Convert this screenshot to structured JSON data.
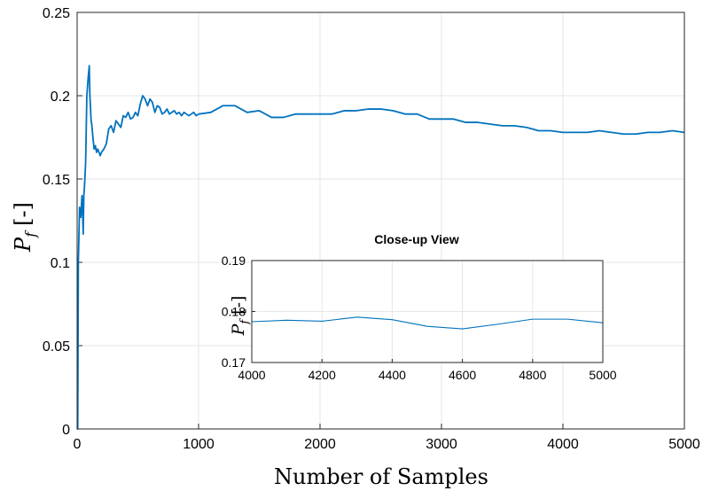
{
  "chart_data": [
    {
      "type": "line",
      "title": "",
      "xlabel": "Number of Samples",
      "ylabel": "P_f [-]",
      "ylabel_parts": {
        "symbol": "P",
        "subscript": "f",
        "unit": "[-]"
      },
      "xlim": [
        0,
        5000
      ],
      "ylim": [
        0,
        0.25
      ],
      "x_ticks": [
        "0",
        "1000",
        "2000",
        "3000",
        "4000",
        "5000"
      ],
      "y_ticks": [
        "0",
        "0.05",
        "0.1",
        "0.15",
        "0.2",
        "0.25"
      ],
      "grid": true,
      "color": "#0072BD",
      "series": [
        {
          "x": [
            1,
            5,
            10,
            20,
            30,
            40,
            45,
            50,
            55,
            60,
            65,
            70,
            75,
            80,
            90,
            100,
            105,
            110,
            115,
            120,
            130,
            140,
            150,
            160,
            170,
            180,
            190,
            200,
            220,
            240,
            260,
            280,
            300,
            320,
            340,
            360,
            380,
            400,
            420,
            440,
            460,
            480,
            500,
            520,
            540,
            560,
            580,
            600,
            620,
            640,
            660,
            680,
            700,
            720,
            740,
            760,
            780,
            800,
            820,
            840,
            860,
            880,
            900,
            920,
            940,
            960,
            980,
            1000,
            1100,
            1200,
            1300,
            1400,
            1500,
            1600,
            1700,
            1800,
            1900,
            2000,
            2100,
            2200,
            2300,
            2400,
            2500,
            2600,
            2700,
            2800,
            2900,
            3000,
            3100,
            3200,
            3300,
            3400,
            3500,
            3600,
            3700,
            3800,
            3900,
            4000,
            4100,
            4200,
            4300,
            4400,
            4500,
            4600,
            4700,
            4800,
            4900,
            5000
          ],
          "y": [
            0.0,
            0.0,
            0.1,
            0.133,
            0.127,
            0.14,
            0.13,
            0.117,
            0.14,
            0.145,
            0.152,
            0.16,
            0.18,
            0.2,
            0.21,
            0.218,
            0.2,
            0.193,
            0.185,
            0.183,
            0.175,
            0.168,
            0.17,
            0.166,
            0.168,
            0.166,
            0.164,
            0.166,
            0.168,
            0.171,
            0.18,
            0.182,
            0.178,
            0.185,
            0.183,
            0.181,
            0.188,
            0.187,
            0.19,
            0.186,
            0.187,
            0.19,
            0.188,
            0.195,
            0.2,
            0.198,
            0.194,
            0.198,
            0.196,
            0.19,
            0.194,
            0.193,
            0.189,
            0.19,
            0.192,
            0.189,
            0.19,
            0.191,
            0.189,
            0.19,
            0.188,
            0.19,
            0.189,
            0.188,
            0.189,
            0.19,
            0.188,
            0.189,
            0.19,
            0.194,
            0.194,
            0.19,
            0.191,
            0.187,
            0.187,
            0.189,
            0.189,
            0.189,
            0.189,
            0.191,
            0.191,
            0.192,
            0.192,
            0.191,
            0.189,
            0.189,
            0.186,
            0.186,
            0.186,
            0.184,
            0.184,
            0.183,
            0.182,
            0.182,
            0.181,
            0.179,
            0.179,
            0.178,
            0.178,
            0.178,
            0.179,
            0.178,
            0.177,
            0.177,
            0.178,
            0.178,
            0.179,
            0.178
          ]
        }
      ]
    },
    {
      "type": "line",
      "title": "Close-up View",
      "xlabel": "",
      "ylabel": "P_f [-]",
      "ylabel_parts": {
        "symbol": "P",
        "subscript": "f",
        "unit": "[-]"
      },
      "xlim": [
        4000,
        5000
      ],
      "ylim": [
        0.17,
        0.19
      ],
      "x_ticks": [
        "4000",
        "4200",
        "4400",
        "4600",
        "4800",
        "5000"
      ],
      "y_ticks": [
        "0.17",
        "0.18",
        "0.19"
      ],
      "grid": true,
      "color": "#0072BD",
      "series": [
        {
          "x": [
            4000,
            4100,
            4200,
            4300,
            4400,
            4500,
            4600,
            4700,
            4800,
            4900,
            5000
          ],
          "y": [
            0.178,
            0.1783,
            0.1781,
            0.1789,
            0.1784,
            0.1771,
            0.1766,
            0.1775,
            0.1785,
            0.1785,
            0.1778
          ]
        }
      ]
    }
  ]
}
